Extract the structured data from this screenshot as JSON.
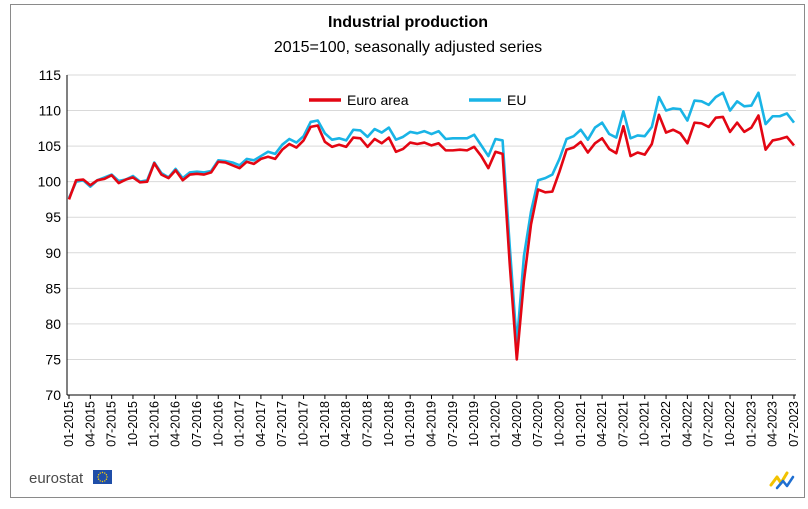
{
  "brand": {
    "name": "eurostat",
    "flag_color": "#1f4ea8",
    "star_color": "#ffd200",
    "swoosh_colors": [
      "#f2c200",
      "#1f6fd1"
    ]
  },
  "chart_data": {
    "type": "line",
    "title": "Industrial production",
    "subtitle": "2015=100, seasonally adjusted series",
    "xlabel": "",
    "ylabel": "",
    "ylim": [
      70,
      115
    ],
    "yticks": [
      "70",
      "75",
      "80",
      "85",
      "90",
      "95",
      "100",
      "105",
      "110",
      "115"
    ],
    "grid": true,
    "legend_position": "top-center",
    "xtick_labels": [
      "01-2015",
      "04-2015",
      "07-2015",
      "10-2015",
      "01-2016",
      "04-2016",
      "07-2016",
      "10-2016",
      "01-2017",
      "04-2017",
      "07-2017",
      "10-2017",
      "01-2018",
      "04-2018",
      "07-2018",
      "10-2018",
      "01-2019",
      "04-2019",
      "07-2019",
      "10-2019",
      "01-2020",
      "04-2020",
      "07-2020",
      "10-2020",
      "01-2021",
      "04-2021",
      "07-2021",
      "10-2021",
      "01-2022",
      "04-2022",
      "07-2022",
      "10-2022",
      "01-2023",
      "04-2023",
      "07-2023"
    ],
    "series": [
      {
        "name": "Euro area",
        "color": "#e30613",
        "values": [
          97.5,
          100.2,
          100.3,
          99.5,
          100.2,
          100.4,
          100.9,
          99.8,
          100.3,
          100.6,
          99.9,
          100.0,
          102.6,
          101.0,
          100.5,
          101.6,
          100.2,
          101.0,
          101.1,
          101.0,
          101.3,
          102.8,
          102.7,
          102.3,
          101.9,
          102.8,
          102.5,
          103.2,
          103.5,
          103.2,
          104.5,
          105.3,
          104.8,
          105.8,
          107.7,
          107.9,
          105.6,
          104.9,
          105.2,
          104.9,
          106.2,
          106.1,
          104.9,
          106.0,
          105.4,
          106.2,
          104.2,
          104.6,
          105.5,
          105.3,
          105.5,
          105.1,
          105.4,
          104.4,
          104.4,
          104.5,
          104.4,
          104.9,
          103.6,
          101.9,
          104.2,
          103.9,
          88.5,
          75.0,
          86.0,
          94.0,
          98.9,
          98.5,
          98.6,
          101.4,
          104.5,
          104.8,
          105.6,
          104.1,
          105.4,
          106.1,
          104.6,
          104.0,
          107.8,
          103.6,
          104.1,
          103.8,
          105.3,
          109.4,
          106.9,
          107.3,
          106.8,
          105.4,
          108.3,
          108.2,
          107.7,
          109.0,
          109.1,
          107.0,
          108.3,
          107.0,
          107.6,
          109.3,
          104.5,
          105.8,
          106.0,
          106.3,
          105.1
        ]
      },
      {
        "name": "EU",
        "color": "#19b4e6",
        "values": [
          97.7,
          100.0,
          100.2,
          99.3,
          100.2,
          100.6,
          101.0,
          100.1,
          100.3,
          100.8,
          100.0,
          100.2,
          102.7,
          101.2,
          100.6,
          101.8,
          100.5,
          101.3,
          101.4,
          101.3,
          101.5,
          103.0,
          102.9,
          102.7,
          102.3,
          103.2,
          103.0,
          103.6,
          104.2,
          103.9,
          105.2,
          106.0,
          105.5,
          106.4,
          108.4,
          108.6,
          106.8,
          105.9,
          106.1,
          105.8,
          107.3,
          107.2,
          106.3,
          107.4,
          106.9,
          107.6,
          105.9,
          106.3,
          107.0,
          106.8,
          107.1,
          106.7,
          107.1,
          106.0,
          106.1,
          106.1,
          106.1,
          106.6,
          105.1,
          103.6,
          106.0,
          105.8,
          91.0,
          77.2,
          89.5,
          95.8,
          100.2,
          100.5,
          101.0,
          103.2,
          106.0,
          106.4,
          107.3,
          105.9,
          107.6,
          108.3,
          106.7,
          106.2,
          109.9,
          106.1,
          106.5,
          106.4,
          107.7,
          111.9,
          110.0,
          110.3,
          110.2,
          108.6,
          111.4,
          111.3,
          110.8,
          111.9,
          112.5,
          110.0,
          111.3,
          110.6,
          110.7,
          112.5,
          108.1,
          109.2,
          109.2,
          109.6,
          108.3
        ]
      }
    ]
  }
}
